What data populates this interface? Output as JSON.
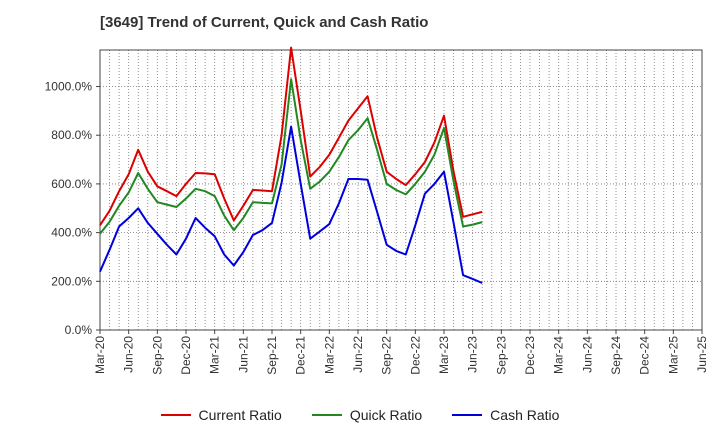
{
  "colors": {
    "current": "#dd0000",
    "quick": "#228822",
    "cash": "#0000dd"
  },
  "chart_data": {
    "type": "line",
    "title": "[3649]  Trend of Current, Quick and Cash Ratio",
    "xlabel": "",
    "ylabel": "",
    "ylim": [
      0,
      1150
    ],
    "y_ticks": [
      0,
      200,
      400,
      600,
      800,
      1000
    ],
    "y_tick_labels": [
      "0.0%",
      "200.0%",
      "400.0%",
      "600.0%",
      "800.0%",
      "1000.0%"
    ],
    "x_tick_labels": [
      "Mar-20",
      "Jun-20",
      "Sep-20",
      "Dec-20",
      "Mar-21",
      "Jun-21",
      "Sep-21",
      "Dec-21",
      "Mar-22",
      "Jun-22",
      "Sep-22",
      "Dec-22",
      "Mar-23",
      "Jun-23",
      "Sep-23",
      "Dec-23",
      "Mar-24",
      "Jun-24",
      "Sep-24",
      "Dec-24",
      "Mar-25",
      "Jun-25"
    ],
    "grid": true,
    "legend_position": "bottom",
    "series": [
      {
        "name": "Current Ratio",
        "color_key": "current",
        "values": [
          430,
          490,
          570,
          640,
          740,
          650,
          590,
          570,
          550,
          600,
          645,
          643,
          640,
          540,
          450,
          510,
          575,
          573,
          570,
          800,
          1160,
          900,
          630,
          670,
          720,
          790,
          860,
          910,
          960,
          790,
          650,
          620,
          595,
          640,
          690,
          770,
          880,
          650,
          465,
          475,
          485
        ]
      },
      {
        "name": "Quick Ratio",
        "color_key": "quick",
        "values": [
          395,
          445,
          510,
          565,
          645,
          580,
          525,
          515,
          505,
          540,
          580,
          570,
          550,
          470,
          410,
          460,
          525,
          522,
          520,
          680,
          1030,
          780,
          580,
          610,
          650,
          710,
          780,
          820,
          870,
          740,
          600,
          575,
          557,
          600,
          650,
          720,
          830,
          610,
          425,
          433,
          443
        ]
      },
      {
        "name": "Cash Ratio",
        "color_key": "cash",
        "values": [
          240,
          330,
          425,
          460,
          500,
          440,
          395,
          350,
          310,
          375,
          460,
          420,
          385,
          310,
          265,
          320,
          390,
          410,
          440,
          605,
          835,
          600,
          375,
          405,
          435,
          520,
          620,
          620,
          617,
          485,
          350,
          325,
          310,
          430,
          560,
          600,
          650,
          440,
          225,
          210,
          193
        ]
      }
    ]
  }
}
